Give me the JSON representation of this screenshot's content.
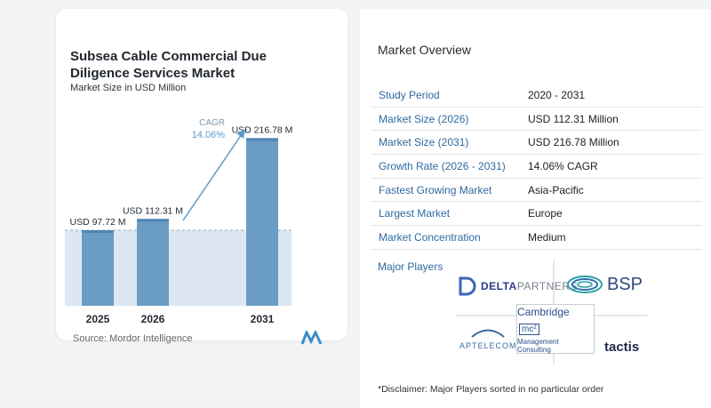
{
  "chart": {
    "title": "Subsea Cable Commercial Due Diligence Services Market",
    "subtitle": "Market Size in USD Million",
    "source": "Source:  Mordor Intelligence",
    "cagr_label": "CAGR",
    "cagr_value": "14.06%"
  },
  "chart_data": {
    "type": "bar",
    "title": "Subsea Cable Commercial Due Diligence Services Market",
    "subtitle": "Market Size in USD Million",
    "categories": [
      "2025",
      "2026",
      "2031"
    ],
    "values": [
      97.72,
      112.31,
      216.78
    ],
    "data_labels": [
      "USD 97.72 M",
      "USD 112.31 M",
      "USD 216.78 M"
    ],
    "ylim": [
      0,
      240
    ],
    "grid": false,
    "annotation": "CAGR 14.06%",
    "colors": {
      "bar": "#6a9cc4",
      "bar_top": "#4f86b5",
      "band": "#dce7f1",
      "arrow": "#5b9cc8"
    }
  },
  "overview": {
    "title": "Market Overview",
    "rows": [
      {
        "label": "Study Period",
        "value": "2020 - 2031"
      },
      {
        "label": "Market Size (2026)",
        "value": "USD 112.31 Million"
      },
      {
        "label": "Market Size (2031)",
        "value": "USD 216.78 Million"
      },
      {
        "label": "Growth Rate (2026 - 2031)",
        "value": "14.06% CAGR"
      },
      {
        "label": "Fastest Growing Market",
        "value": "Asia-Pacific"
      },
      {
        "label": "Largest Market",
        "value": "Europe"
      },
      {
        "label": "Market Concentration",
        "value": "Medium"
      }
    ]
  },
  "players": {
    "title": "Major Players",
    "logos": {
      "delta_a": "DELTA",
      "delta_b": "PARTNERS",
      "bsp": "BSP",
      "aptelecom": "APTELECOM",
      "cambridge_1": "Cambridge",
      "cambridge_sup": "mc²",
      "cambridge_2": "Management Consulting",
      "tactis": "tactis"
    }
  },
  "disclaimer": "*Disclaimer: Major Players sorted in no particular order"
}
